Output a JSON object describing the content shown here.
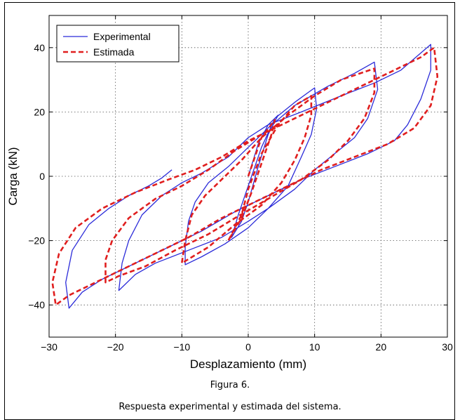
{
  "caption": {
    "figure_label": "Figura 6.",
    "text": "Respuesta experimental y estimada del sistema."
  },
  "chart_data": {
    "type": "line",
    "title": "",
    "xlabel": "Desplazamiento (mm)",
    "ylabel": "Carga (kN)",
    "xlim": [
      -30,
      30
    ],
    "ylim": [
      -50,
      50
    ],
    "xticks": [
      -30,
      -20,
      -10,
      0,
      10,
      20,
      30
    ],
    "yticks": [
      -40,
      -20,
      0,
      20,
      40
    ],
    "xtick_labels": [
      "−30",
      "−20",
      "−10",
      "0",
      "10",
      "20",
      "30"
    ],
    "ytick_labels": [
      "−40",
      "−20",
      "0",
      "20",
      "40"
    ],
    "grid": true,
    "legend": "top-left",
    "series": [
      {
        "name": "Experimental",
        "color": "#2b2bd9",
        "style": "solid",
        "points": [
          [
            0,
            0
          ],
          [
            1.5,
            10
          ],
          [
            3,
            16
          ],
          [
            4.5,
            19
          ],
          [
            3,
            13
          ],
          [
            1.5,
            3
          ],
          [
            0,
            -8
          ],
          [
            -1,
            -14
          ],
          [
            -2.5,
            -19
          ],
          [
            -1.5,
            -12
          ],
          [
            0,
            -3
          ],
          [
            2,
            9
          ],
          [
            4,
            18
          ],
          [
            7,
            23
          ],
          [
            9,
            26
          ],
          [
            10,
            27.5
          ],
          [
            10.3,
            21
          ],
          [
            9.5,
            13
          ],
          [
            8,
            6
          ],
          [
            6,
            -3
          ],
          [
            3,
            -10
          ],
          [
            0,
            -16
          ],
          [
            -3.5,
            -21
          ],
          [
            -7,
            -25
          ],
          [
            -9.5,
            -27.5
          ],
          [
            -9.5,
            -22
          ],
          [
            -9,
            -14
          ],
          [
            -8,
            -8
          ],
          [
            -6,
            -2
          ],
          [
            -3,
            3
          ],
          [
            0,
            9
          ],
          [
            3,
            15
          ],
          [
            7,
            22
          ],
          [
            12,
            28
          ],
          [
            16,
            32
          ],
          [
            19,
            35.5
          ],
          [
            19.5,
            27
          ],
          [
            18,
            18
          ],
          [
            16,
            12
          ],
          [
            13,
            7
          ],
          [
            10,
            2
          ],
          [
            7,
            -4
          ],
          [
            3,
            -10
          ],
          [
            0,
            -14
          ],
          [
            -4,
            -19
          ],
          [
            -9,
            -23
          ],
          [
            -14,
            -27
          ],
          [
            -17,
            -30.5
          ],
          [
            -19.5,
            -35.5
          ],
          [
            -19,
            -27
          ],
          [
            -18,
            -20
          ],
          [
            -16,
            -12
          ],
          [
            -13,
            -6
          ],
          [
            -10,
            -2
          ],
          [
            -7,
            1
          ],
          [
            -3,
            6
          ],
          [
            0,
            12
          ],
          [
            3,
            16
          ],
          [
            8,
            20
          ],
          [
            14,
            25
          ],
          [
            19,
            29
          ],
          [
            23,
            33
          ],
          [
            27.5,
            41
          ],
          [
            27.5,
            33
          ],
          [
            26,
            24
          ],
          [
            24,
            16
          ],
          [
            22,
            11
          ],
          [
            18,
            7
          ],
          [
            13,
            3
          ],
          [
            8,
            -1
          ],
          [
            3,
            -6
          ],
          [
            -2,
            -11
          ],
          [
            -7,
            -17
          ],
          [
            -12,
            -22
          ],
          [
            -17,
            -27
          ],
          [
            -22,
            -32
          ],
          [
            -25,
            -36
          ],
          [
            -27,
            -41
          ],
          [
            -27.5,
            -33
          ],
          [
            -26.5,
            -23
          ],
          [
            -24,
            -15
          ],
          [
            -21,
            -10
          ],
          [
            -18,
            -6
          ],
          [
            -15,
            -3
          ],
          [
            -13,
            -0.5
          ],
          [
            -11.5,
            2
          ]
        ]
      },
      {
        "name": "Estimada",
        "color": "#e01e1e",
        "style": "dashed",
        "points": [
          [
            0,
            0
          ],
          [
            2,
            12
          ],
          [
            4,
            17.5
          ],
          [
            3.5,
            13
          ],
          [
            2,
            4
          ],
          [
            0.5,
            -5
          ],
          [
            -1,
            -13
          ],
          [
            -3,
            -20
          ],
          [
            -1,
            -12
          ],
          [
            0,
            -4
          ],
          [
            2,
            7
          ],
          [
            4.5,
            16
          ],
          [
            7,
            22
          ],
          [
            9.5,
            25
          ],
          [
            9.5,
            19
          ],
          [
            8.5,
            12
          ],
          [
            7,
            5
          ],
          [
            5,
            -2
          ],
          [
            2,
            -9
          ],
          [
            -2,
            -15
          ],
          [
            -6,
            -22
          ],
          [
            -10,
            -27
          ],
          [
            -9.5,
            -20
          ],
          [
            -8.5,
            -12
          ],
          [
            -6.5,
            -6
          ],
          [
            -4,
            -1
          ],
          [
            -1,
            5
          ],
          [
            2,
            12
          ],
          [
            6,
            19
          ],
          [
            10,
            25
          ],
          [
            14,
            30
          ],
          [
            19,
            33.5
          ],
          [
            19,
            26
          ],
          [
            17.5,
            18
          ],
          [
            15,
            11
          ],
          [
            12,
            5
          ],
          [
            8,
            -1
          ],
          [
            3,
            -7
          ],
          [
            -2,
            -13
          ],
          [
            -6,
            -18
          ],
          [
            -11,
            -23
          ],
          [
            -15.5,
            -28
          ],
          [
            -19.5,
            -31
          ],
          [
            -21.5,
            -33
          ],
          [
            -21.5,
            -26
          ],
          [
            -20.5,
            -20
          ],
          [
            -18,
            -13
          ],
          [
            -14,
            -7
          ],
          [
            -10,
            -3
          ],
          [
            -6,
            2
          ],
          [
            -2,
            8
          ],
          [
            2,
            13
          ],
          [
            7,
            18
          ],
          [
            12,
            23
          ],
          [
            17,
            28
          ],
          [
            22,
            33
          ],
          [
            26,
            37
          ],
          [
            28,
            40
          ],
          [
            28.5,
            31
          ],
          [
            27.5,
            22
          ],
          [
            25,
            15
          ],
          [
            21,
            10
          ],
          [
            16,
            6
          ],
          [
            11,
            2
          ],
          [
            6,
            -3
          ],
          [
            1,
            -8
          ],
          [
            -4,
            -13
          ],
          [
            -9,
            -19
          ],
          [
            -14,
            -24
          ],
          [
            -19,
            -29
          ],
          [
            -24,
            -34
          ],
          [
            -27,
            -37
          ],
          [
            -29,
            -40
          ],
          [
            -29.5,
            -33
          ],
          [
            -28.5,
            -24
          ],
          [
            -26,
            -16
          ],
          [
            -22,
            -10
          ],
          [
            -17,
            -5
          ],
          [
            -12,
            -1
          ],
          [
            -8,
            2
          ],
          [
            -4,
            6
          ],
          [
            0,
            11
          ],
          [
            3,
            14
          ]
        ]
      }
    ]
  }
}
